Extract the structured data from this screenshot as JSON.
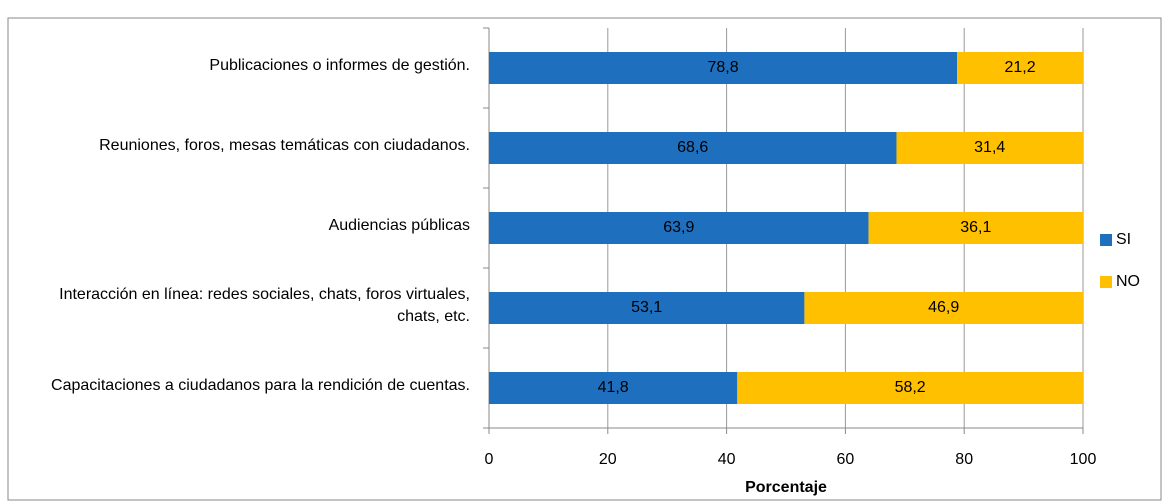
{
  "chart_data": {
    "type": "stacked-bar-horizontal",
    "categories": [
      "Publicaciones  o informes de gestión.",
      "Reuniones, foros, mesas temáticas con ciudadanos.",
      "Audiencias públicas",
      "Interacción en línea: redes sociales, chats, foros virtuales, chats, etc.",
      "Capacitaciones a ciudadanos para la rendición de cuentas."
    ],
    "series": [
      {
        "name": "SI",
        "color": "#1f6fbf",
        "values": [
          78.8,
          68.6,
          63.9,
          53.1,
          41.8
        ],
        "value_labels": [
          "78,8",
          "68,6",
          "63,9",
          "53,1",
          "41,8"
        ]
      },
      {
        "name": "NO",
        "color": "#ffc000",
        "values": [
          21.2,
          31.4,
          36.1,
          46.9,
          58.2
        ],
        "value_labels": [
          "21,2",
          "31,4",
          "36,1",
          "46,9",
          "58,2"
        ]
      }
    ],
    "xlim": [
      0,
      100
    ],
    "xticks": [
      0,
      20,
      40,
      60,
      80,
      100
    ],
    "xlabel": "Porcentaje",
    "grid": true,
    "legend": "right"
  }
}
